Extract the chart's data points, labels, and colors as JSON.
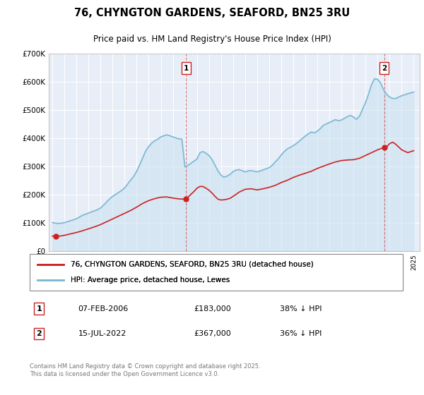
{
  "title": "76, CHYNGTON GARDENS, SEAFORD, BN25 3RU",
  "subtitle": "Price paid vs. HM Land Registry's House Price Index (HPI)",
  "legend_label_red": "76, CHYNGTON GARDENS, SEAFORD, BN25 3RU (detached house)",
  "legend_label_blue": "HPI: Average price, detached house, Lewes",
  "footer": "Contains HM Land Registry data © Crown copyright and database right 2025.\nThis data is licensed under the Open Government Licence v3.0.",
  "annotation1_label": "1",
  "annotation1_date": "07-FEB-2006",
  "annotation1_price": "£183,000",
  "annotation1_hpi": "38% ↓ HPI",
  "annotation2_label": "2",
  "annotation2_date": "15-JUL-2022",
  "annotation2_price": "£367,000",
  "annotation2_hpi": "36% ↓ HPI",
  "marker1_x": 2006.1,
  "marker2_x": 2022.54,
  "marker1_y": 183000,
  "marker2_y": 367000,
  "background_color": "#ffffff",
  "plot_bg_color": "#e8eef8",
  "red_color": "#cc2222",
  "blue_color": "#7ab8d4",
  "blue_fill_color": "#c5dff0",
  "ylim": [
    0,
    700000
  ],
  "xlim_start": 1994.7,
  "xlim_end": 2025.5,
  "hpi_data": {
    "years": [
      1995.0,
      1995.25,
      1995.5,
      1995.75,
      1996.0,
      1996.25,
      1996.5,
      1996.75,
      1997.0,
      1997.25,
      1997.5,
      1997.75,
      1998.0,
      1998.25,
      1998.5,
      1998.75,
      1999.0,
      1999.25,
      1999.5,
      1999.75,
      2000.0,
      2000.25,
      2000.5,
      2000.75,
      2001.0,
      2001.25,
      2001.5,
      2001.75,
      2002.0,
      2002.25,
      2002.5,
      2002.75,
      2003.0,
      2003.25,
      2003.5,
      2003.75,
      2004.0,
      2004.25,
      2004.5,
      2004.75,
      2005.0,
      2005.25,
      2005.5,
      2005.75,
      2006.0,
      2006.25,
      2006.5,
      2006.75,
      2007.0,
      2007.25,
      2007.5,
      2007.75,
      2008.0,
      2008.25,
      2008.5,
      2008.75,
      2009.0,
      2009.25,
      2009.5,
      2009.75,
      2010.0,
      2010.25,
      2010.5,
      2010.75,
      2011.0,
      2011.25,
      2011.5,
      2011.75,
      2012.0,
      2012.25,
      2012.5,
      2012.75,
      2013.0,
      2013.25,
      2013.5,
      2013.75,
      2014.0,
      2014.25,
      2014.5,
      2014.75,
      2015.0,
      2015.25,
      2015.5,
      2015.75,
      2016.0,
      2016.25,
      2016.5,
      2016.75,
      2017.0,
      2017.25,
      2017.5,
      2017.75,
      2018.0,
      2018.25,
      2018.5,
      2018.75,
      2019.0,
      2019.25,
      2019.5,
      2019.75,
      2020.0,
      2020.25,
      2020.5,
      2020.75,
      2021.0,
      2021.25,
      2021.5,
      2021.75,
      2022.0,
      2022.25,
      2022.5,
      2022.75,
      2023.0,
      2023.25,
      2023.5,
      2023.75,
      2024.0,
      2024.25,
      2024.5,
      2024.75,
      2025.0
    ],
    "values": [
      100000,
      98000,
      97000,
      98000,
      100000,
      103000,
      107000,
      110000,
      114000,
      120000,
      126000,
      130000,
      134000,
      138000,
      142000,
      146000,
      152000,
      162000,
      173000,
      184000,
      193000,
      200000,
      207000,
      214000,
      223000,
      237000,
      251000,
      264000,
      282000,
      305000,
      330000,
      354000,
      370000,
      382000,
      390000,
      396000,
      404000,
      408000,
      411000,
      408000,
      404000,
      400000,
      397000,
      396000,
      298000,
      303000,
      310000,
      318000,
      325000,
      348000,
      352000,
      346000,
      338000,
      324000,
      304000,
      283000,
      268000,
      261000,
      265000,
      271000,
      281000,
      286000,
      288000,
      284000,
      280000,
      283000,
      285000,
      282000,
      280000,
      283000,
      287000,
      291000,
      295000,
      303000,
      315000,
      326000,
      340000,
      352000,
      361000,
      367000,
      373000,
      380000,
      389000,
      398000,
      407000,
      415000,
      421000,
      418000,
      424000,
      434000,
      445000,
      450000,
      455000,
      460000,
      465000,
      461000,
      464000,
      470000,
      476000,
      480000,
      474000,
      466000,
      478000,
      502000,
      526000,
      556000,
      590000,
      610000,
      608000,
      595000,
      570000,
      555000,
      545000,
      540000,
      540000,
      545000,
      550000,
      553000,
      557000,
      560000,
      563000
    ]
  },
  "price_paid_line": {
    "years": [
      1995.0,
      1995.3,
      1995.6,
      1996.0,
      1996.5,
      1997.0,
      1997.5,
      1998.0,
      1998.5,
      1999.0,
      1999.5,
      2000.0,
      2000.5,
      2001.0,
      2001.5,
      2002.0,
      2002.5,
      2003.0,
      2003.5,
      2004.0,
      2004.5,
      2005.0,
      2005.5,
      2005.75,
      2006.0,
      2006.1,
      2006.25,
      2006.5,
      2006.75,
      2007.0,
      2007.25,
      2007.5,
      2007.75,
      2008.0,
      2008.25,
      2008.5,
      2008.75,
      2009.0,
      2009.25,
      2009.5,
      2009.75,
      2010.0,
      2010.25,
      2010.5,
      2010.75,
      2011.0,
      2011.5,
      2012.0,
      2012.5,
      2013.0,
      2013.5,
      2014.0,
      2014.5,
      2015.0,
      2015.5,
      2016.0,
      2016.5,
      2017.0,
      2017.5,
      2018.0,
      2018.5,
      2019.0,
      2019.5,
      2020.0,
      2020.5,
      2021.0,
      2021.5,
      2022.0,
      2022.25,
      2022.5,
      2022.54,
      2022.75,
      2023.0,
      2023.25,
      2023.5,
      2024.0,
      2024.5,
      2025.0
    ],
    "values": [
      52000,
      53000,
      52000,
      55000,
      60000,
      65000,
      71000,
      78000,
      85000,
      93000,
      103000,
      113000,
      123000,
      133000,
      143000,
      155000,
      168000,
      178000,
      185000,
      190000,
      191000,
      187000,
      184000,
      183500,
      183200,
      183000,
      190000,
      200000,
      210000,
      222000,
      228000,
      228000,
      222000,
      215000,
      205000,
      193000,
      183000,
      180000,
      181000,
      183000,
      186000,
      193000,
      200000,
      208000,
      213000,
      218000,
      220000,
      216000,
      220000,
      225000,
      232000,
      242000,
      250000,
      260000,
      268000,
      275000,
      282000,
      292000,
      300000,
      308000,
      315000,
      320000,
      322000,
      323000,
      328000,
      338000,
      348000,
      358000,
      362000,
      365000,
      367000,
      368000,
      380000,
      385000,
      378000,
      358000,
      348000,
      355000
    ]
  },
  "marker1_dot_y": 183000,
  "marker2_dot_y": 367000
}
